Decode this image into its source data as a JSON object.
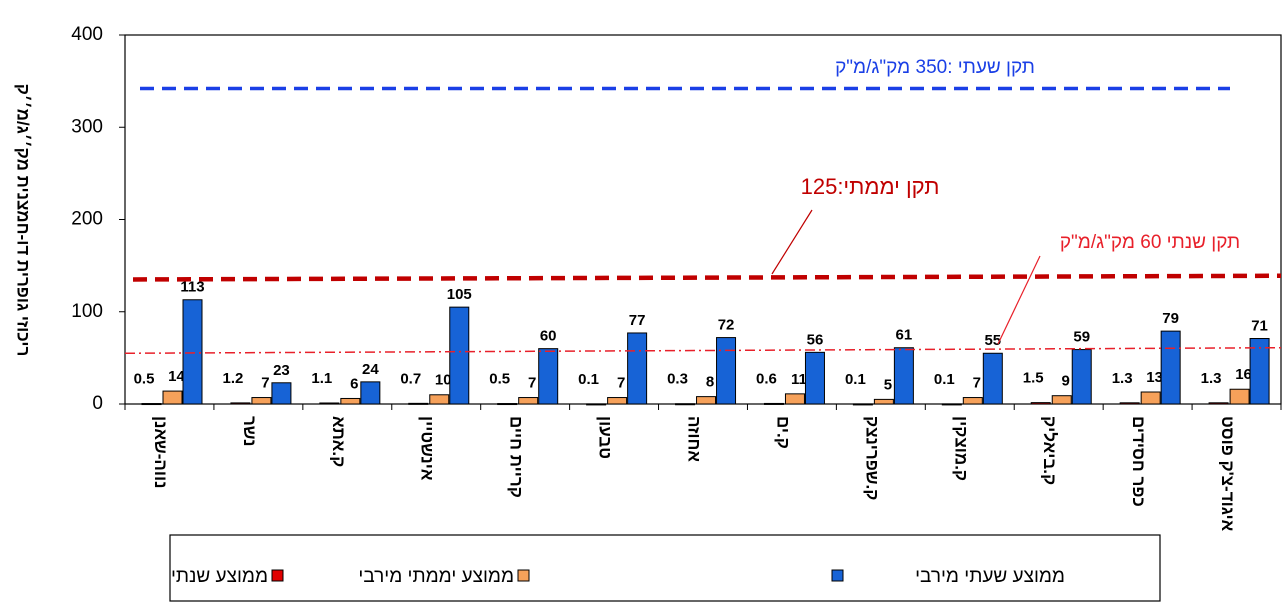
{
  "chart_data": {
    "type": "bar",
    "y_label": "ריכוזי גופרית דו-חמצנית מק׳׳ג/מ׳׳ק",
    "categories": [
      "נווה-שאנן",
      "נשר",
      "ק.אתא",
      "אינשטיין",
      "קריית חיים",
      "טבעון",
      "אחוזה",
      "ק.ים",
      "ק.שפרינצק",
      "ק.מוצקין",
      "ק.ביאליק",
      "כפר חסידים",
      "איגוד-צ'ק פוסט"
    ],
    "series": [
      {
        "name": "ממוצע שנתי",
        "color": "#e00000",
        "values": [
          0.5,
          1.2,
          1.1,
          0.7,
          0.5,
          0.1,
          0.3,
          0.6,
          0.1,
          0.1,
          1.5,
          1.3,
          1.3
        ]
      },
      {
        "name": "ממוצע יממתי מירבי",
        "color": "#f6a15a",
        "values": [
          14,
          7,
          6,
          10,
          7,
          7,
          8,
          11,
          5,
          7,
          9,
          13,
          16
        ]
      },
      {
        "name": "ממוצע שעתי מירבי",
        "color": "#1763d6",
        "values": [
          113,
          23,
          24,
          105,
          60,
          77,
          72,
          56,
          61,
          55,
          59,
          79,
          71
        ]
      }
    ],
    "ylim": [
      0,
      400
    ],
    "yticks": [
      0,
      100,
      200,
      300,
      400
    ],
    "reference_lines": [
      {
        "label": "תקן שעתי :350 מק\"ג/מ\"ק",
        "color": "#1a3fe6",
        "style": "dashed",
        "values": [
          342,
          342
        ]
      },
      {
        "label": "תקן יממתי:125",
        "color": "#c00000",
        "style": "dashed",
        "values": [
          135,
          139
        ]
      },
      {
        "label": "תקן שנתי 60 מק\"ג/מ\"ק",
        "color": "#e8202a",
        "style": "dashdot",
        "values": [
          55,
          61
        ]
      }
    ],
    "legend_position": "bottom"
  }
}
